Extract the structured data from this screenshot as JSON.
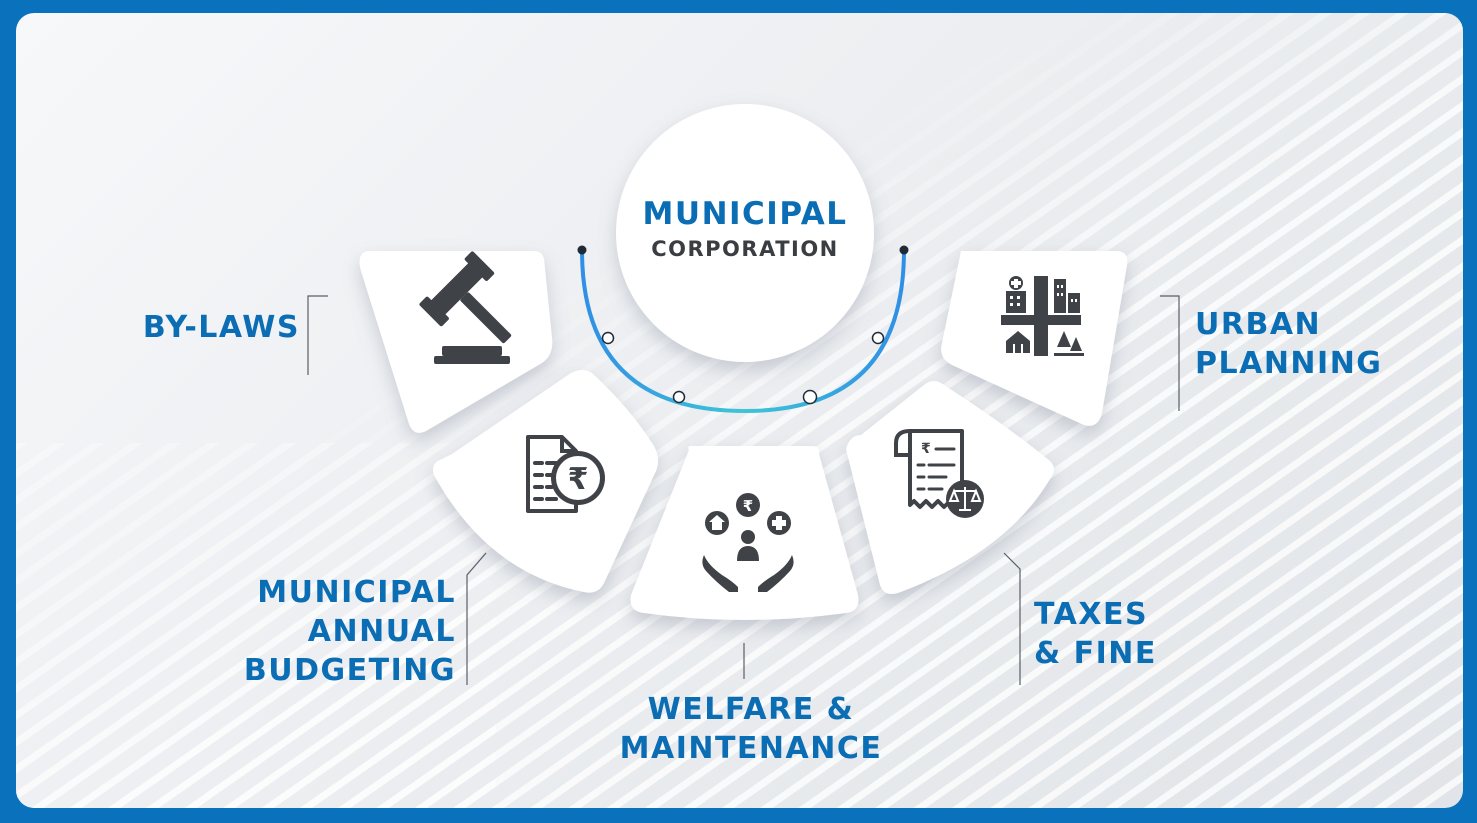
{
  "hub": {
    "title": "MUNICIPAL",
    "subtitle": "CORPORATION"
  },
  "segments": [
    {
      "id": "by-laws",
      "lines": [
        "BY-LAWS"
      ],
      "icon": "gavel-icon"
    },
    {
      "id": "budgeting",
      "lines": [
        "MUNICIPAL",
        "ANNUAL",
        "BUDGETING"
      ],
      "icon": "rupee-document-icon"
    },
    {
      "id": "welfare",
      "lines": [
        "WELFARE &",
        "MAINTENANCE"
      ],
      "icon": "welfare-hands-icon"
    },
    {
      "id": "taxes",
      "lines": [
        "TAXES",
        "& FINE"
      ],
      "icon": "tax-receipt-scales-icon"
    },
    {
      "id": "urban",
      "lines": [
        "URBAN",
        "PLANNING"
      ],
      "icon": "city-buildings-icon"
    }
  ],
  "colors": {
    "border": "#0a72bc",
    "label": "#0b6db4",
    "icon": "#3f4247",
    "arc_start": "#2f8fe6",
    "arc_end": "#40c4d6"
  }
}
